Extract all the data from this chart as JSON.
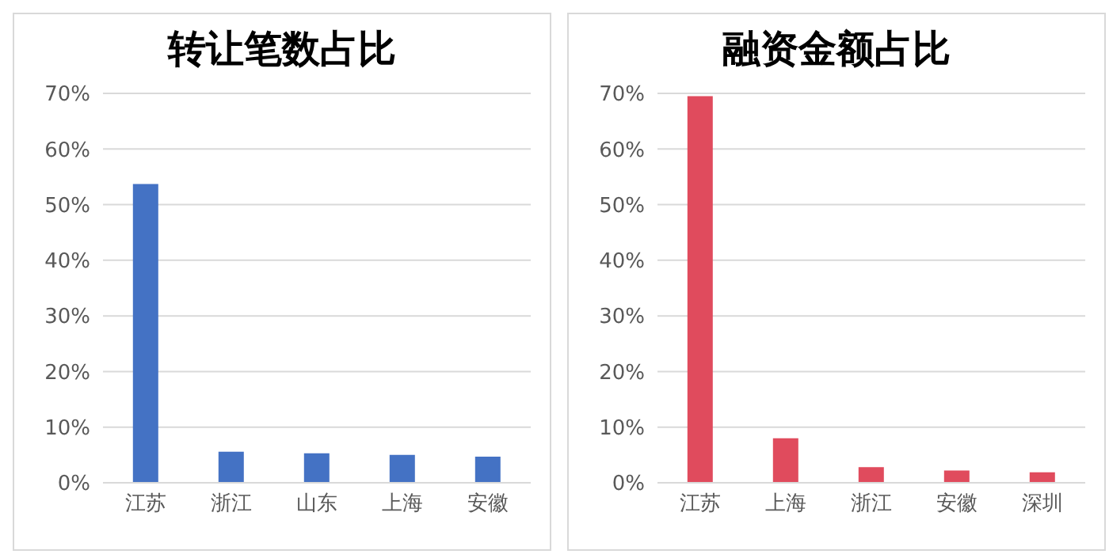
{
  "chart_data": [
    {
      "type": "bar",
      "title": "转让笔数占比",
      "categories": [
        "江苏",
        "浙江",
        "山东",
        "上海",
        "安徽"
      ],
      "values": [
        53.7,
        5.6,
        5.3,
        5.0,
        4.7
      ],
      "color": "#4472c4",
      "ylim": [
        0,
        70
      ],
      "yticks": [
        {
          "value": 0,
          "label": "0%"
        },
        {
          "value": 10,
          "label": "10%"
        },
        {
          "value": 20,
          "label": "20%"
        },
        {
          "value": 30,
          "label": "30%"
        },
        {
          "value": 40,
          "label": "40%"
        },
        {
          "value": 50,
          "label": "50%"
        },
        {
          "value": 60,
          "label": "60%"
        },
        {
          "value": 70,
          "label": "70%"
        }
      ],
      "grid": "y"
    },
    {
      "type": "bar",
      "title": "融资金额占比",
      "categories": [
        "江苏",
        "上海",
        "浙江",
        "安徽",
        "深圳"
      ],
      "values": [
        69.5,
        8.0,
        2.8,
        2.2,
        1.9
      ],
      "color": "#e04b5d",
      "ylim": [
        0,
        70
      ],
      "yticks": [
        {
          "value": 0,
          "label": "0%"
        },
        {
          "value": 10,
          "label": "10%"
        },
        {
          "value": 20,
          "label": "20%"
        },
        {
          "value": 30,
          "label": "30%"
        },
        {
          "value": 40,
          "label": "40%"
        },
        {
          "value": 50,
          "label": "50%"
        },
        {
          "value": 60,
          "label": "60%"
        },
        {
          "value": 70,
          "label": "70%"
        }
      ],
      "grid": "y"
    }
  ]
}
